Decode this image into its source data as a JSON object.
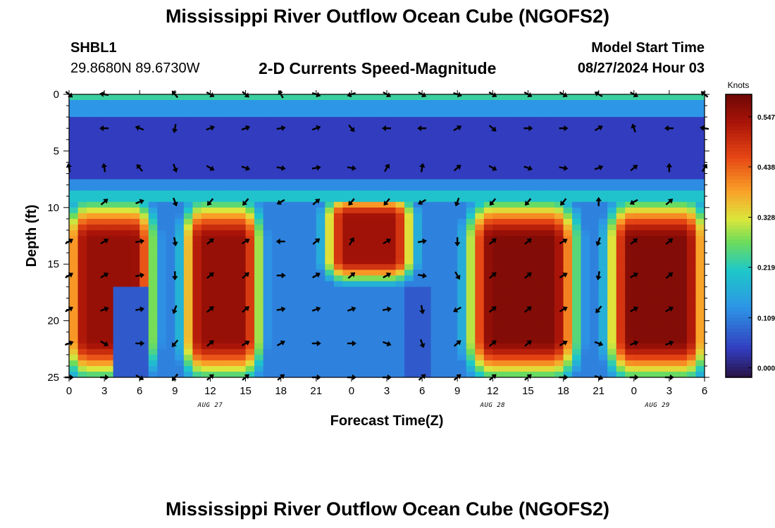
{
  "header": {
    "title": "Mississippi River Outflow Ocean Cube (NGOFS2)",
    "station_id": "SHBL1",
    "station_coords": "29.8680N  89.6730W",
    "subtitle": "2-D Currents Speed-Magnitude",
    "start_label": "Model Start Time",
    "start_value": "08/27/2024 Hour 03"
  },
  "footer": {
    "title": "Mississippi River Outflow Ocean Cube (NGOFS2)"
  },
  "chart_data": {
    "type": "heatmap",
    "title": "2-D Currents Speed-Magnitude",
    "xlabel": "Forecast Time(Z)",
    "ylabel": "Depth (ft)",
    "x_unit": "hours from 00Z Aug 27",
    "xlim": [
      0,
      54
    ],
    "ylim": [
      0,
      25
    ],
    "y_inverted": true,
    "x_tick_labels": [
      "0",
      "3",
      "6",
      "9",
      "12",
      "15",
      "18",
      "21",
      "0",
      "3",
      "6",
      "9",
      "12",
      "15",
      "18",
      "21",
      "0",
      "3",
      "6"
    ],
    "y_tick_labels": [
      "0",
      "5",
      "10",
      "15",
      "20",
      "25"
    ],
    "date_labels": [
      {
        "text": "AUG 27",
        "hour": 12
      },
      {
        "text": "AUG 28",
        "hour": 36
      },
      {
        "text": "AUG 29",
        "hour": 50
      }
    ],
    "colorbar": {
      "label": "Knots",
      "min": 0.0,
      "max": 0.6,
      "ticks": [
        "0.000",
        "0.109",
        "0.219",
        "0.328",
        "0.438",
        "0.547"
      ],
      "tick_values": [
        0.0,
        0.109,
        0.219,
        0.328,
        0.438,
        0.547
      ]
    },
    "layers": [
      {
        "depth_range": [
          0,
          0.5
        ],
        "speed": 0.25
      },
      {
        "depth_range": [
          0.5,
          2
        ],
        "speed": 0.15
      },
      {
        "depth_range": [
          2,
          7.5
        ],
        "speed": 0.06
      },
      {
        "depth_range": [
          7.5,
          8.5
        ],
        "speed": 0.14
      },
      {
        "depth_range": [
          8.5,
          9.5
        ],
        "speed": 0.22
      }
    ],
    "high_speed_regions": [
      {
        "hours": [
          0,
          7
        ],
        "depths": [
          9.5,
          25
        ],
        "peak": 0.56
      },
      {
        "hours": [
          10,
          16
        ],
        "depths": [
          9.5,
          25
        ],
        "peak": 0.56
      },
      {
        "hours": [
          22,
          29
        ],
        "depths": [
          9.5,
          16
        ],
        "peak": 0.55
      },
      {
        "hours": [
          34,
          43
        ],
        "depths": [
          9.5,
          25
        ],
        "peak": 0.58
      },
      {
        "hours": [
          46,
          54
        ],
        "depths": [
          9.5,
          25
        ],
        "peak": 0.58
      }
    ],
    "low_speed_regions": [
      {
        "hours": [
          4,
          7
        ],
        "depths": [
          17,
          25
        ],
        "value": 0.09
      },
      {
        "hours": [
          28.5,
          30.5
        ],
        "depths": [
          17,
          25
        ],
        "value": 0.09
      }
    ],
    "arrows": [
      {
        "hour": 0,
        "depth": 0,
        "dir": -40
      },
      {
        "hour": 3,
        "depth": 0,
        "dir": 170
      },
      {
        "hour": 9,
        "depth": 0,
        "dir": 130
      },
      {
        "hour": 12,
        "depth": 0,
        "dir": -30
      },
      {
        "hour": 15,
        "depth": 0,
        "dir": -40
      },
      {
        "hour": 18,
        "depth": 0,
        "dir": 120
      },
      {
        "hour": 21,
        "depth": 0,
        "dir": -20
      },
      {
        "hour": 24,
        "depth": 0,
        "dir": 200
      },
      {
        "hour": 27,
        "depth": 0,
        "dir": -30
      },
      {
        "hour": 30,
        "depth": 0,
        "dir": -30
      },
      {
        "hour": 33,
        "depth": 0,
        "dir": -20
      },
      {
        "hour": 36,
        "depth": 0,
        "dir": -30
      },
      {
        "hour": 39,
        "depth": 0,
        "dir": -30
      },
      {
        "hour": 42,
        "depth": 0,
        "dir": -30
      },
      {
        "hour": 45,
        "depth": 0,
        "dir": 150
      },
      {
        "hour": 48,
        "depth": 0,
        "dir": -30
      },
      {
        "hour": 54,
        "depth": 0,
        "dir": 140
      },
      {
        "hour": 3,
        "depth": 3,
        "dir": 180
      },
      {
        "hour": 6,
        "depth": 3,
        "dir": 160
      },
      {
        "hour": 9,
        "depth": 3,
        "dir": -100
      },
      {
        "hour": 12,
        "depth": 3,
        "dir": 20
      },
      {
        "hour": 15,
        "depth": 3,
        "dir": 20
      },
      {
        "hour": 18,
        "depth": 3,
        "dir": 10
      },
      {
        "hour": 21,
        "depth": 3,
        "dir": 20
      },
      {
        "hour": 24,
        "depth": 3,
        "dir": -50
      },
      {
        "hour": 27,
        "depth": 3,
        "dir": 180
      },
      {
        "hour": 30,
        "depth": 3,
        "dir": 180
      },
      {
        "hour": 33,
        "depth": 3,
        "dir": 30
      },
      {
        "hour": 36,
        "depth": 3,
        "dir": -40
      },
      {
        "hour": 39,
        "depth": 3,
        "dir": 0
      },
      {
        "hour": 42,
        "depth": 3,
        "dir": 0
      },
      {
        "hour": 45,
        "depth": 3,
        "dir": 30
      },
      {
        "hour": 48,
        "depth": 3,
        "dir": 110
      },
      {
        "hour": 51,
        "depth": 3,
        "dir": 180
      },
      {
        "hour": 54,
        "depth": 3,
        "dir": 170
      },
      {
        "hour": 0,
        "depth": 6.5,
        "dir": 100
      },
      {
        "hour": 3,
        "depth": 6.5,
        "dir": 100
      },
      {
        "hour": 6,
        "depth": 6.5,
        "dir": 130
      },
      {
        "hour": 9,
        "depth": 6.5,
        "dir": -70
      },
      {
        "hour": 12,
        "depth": 6.5,
        "dir": -30
      },
      {
        "hour": 15,
        "depth": 6.5,
        "dir": -20
      },
      {
        "hour": 18,
        "depth": 6.5,
        "dir": -10
      },
      {
        "hour": 21,
        "depth": 6.5,
        "dir": 10
      },
      {
        "hour": 24,
        "depth": 6.5,
        "dir": -10
      },
      {
        "hour": 27,
        "depth": 6.5,
        "dir": 60
      },
      {
        "hour": 30,
        "depth": 6.5,
        "dir": 80
      },
      {
        "hour": 33,
        "depth": 6.5,
        "dir": 40
      },
      {
        "hour": 36,
        "depth": 6.5,
        "dir": -30
      },
      {
        "hour": 39,
        "depth": 6.5,
        "dir": -20
      },
      {
        "hour": 42,
        "depth": 6.5,
        "dir": -10
      },
      {
        "hour": 45,
        "depth": 6.5,
        "dir": 20
      },
      {
        "hour": 48,
        "depth": 6.5,
        "dir": 40
      },
      {
        "hour": 51,
        "depth": 6.5,
        "dir": 90
      },
      {
        "hour": 54,
        "depth": 6.5,
        "dir": 60
      },
      {
        "hour": 3,
        "depth": 9.5,
        "dir": 40
      },
      {
        "hour": 6,
        "depth": 9.5,
        "dir": 20
      },
      {
        "hour": 9,
        "depth": 9.5,
        "dir": -70
      },
      {
        "hour": 12,
        "depth": 9.5,
        "dir": -130
      },
      {
        "hour": 15,
        "depth": 9.5,
        "dir": -130
      },
      {
        "hour": 18,
        "depth": 9.5,
        "dir": -150
      },
      {
        "hour": 21,
        "depth": 9.5,
        "dir": 40
      },
      {
        "hour": 24,
        "depth": 9.5,
        "dir": -130
      },
      {
        "hour": 27,
        "depth": 9.5,
        "dir": -130
      },
      {
        "hour": 30,
        "depth": 9.5,
        "dir": -150
      },
      {
        "hour": 33,
        "depth": 9.5,
        "dir": -110
      },
      {
        "hour": 36,
        "depth": 9.5,
        "dir": -130
      },
      {
        "hour": 39,
        "depth": 9.5,
        "dir": -130
      },
      {
        "hour": 42,
        "depth": 9.5,
        "dir": -130
      },
      {
        "hour": 45,
        "depth": 9.5,
        "dir": 90
      },
      {
        "hour": 48,
        "depth": 9.5,
        "dir": -150
      },
      {
        "hour": 51,
        "depth": 9.5,
        "dir": 40
      },
      {
        "hour": 0,
        "depth": 13,
        "dir": 30
      },
      {
        "hour": 3,
        "depth": 13,
        "dir": 30
      },
      {
        "hour": 6,
        "depth": 13,
        "dir": 10
      },
      {
        "hour": 9,
        "depth": 13,
        "dir": -80
      },
      {
        "hour": 12,
        "depth": 13,
        "dir": 40
      },
      {
        "hour": 15,
        "depth": 13,
        "dir": 30
      },
      {
        "hour": 18,
        "depth": 13,
        "dir": 180
      },
      {
        "hour": 21,
        "depth": 13,
        "dir": 40
      },
      {
        "hour": 24,
        "depth": 13,
        "dir": 60
      },
      {
        "hour": 27,
        "depth": 13,
        "dir": 30
      },
      {
        "hour": 30,
        "depth": 13,
        "dir": 10
      },
      {
        "hour": 33,
        "depth": 13,
        "dir": -90
      },
      {
        "hour": 36,
        "depth": 13,
        "dir": 40
      },
      {
        "hour": 39,
        "depth": 13,
        "dir": 40
      },
      {
        "hour": 42,
        "depth": 13,
        "dir": 30
      },
      {
        "hour": 45,
        "depth": 13,
        "dir": -110
      },
      {
        "hour": 48,
        "depth": 13,
        "dir": 40
      },
      {
        "hour": 51,
        "depth": 13,
        "dir": 40
      },
      {
        "hour": 0,
        "depth": 16,
        "dir": 30
      },
      {
        "hour": 3,
        "depth": 16,
        "dir": 30
      },
      {
        "hour": 6,
        "depth": 16,
        "dir": 10
      },
      {
        "hour": 9,
        "depth": 16,
        "dir": -90
      },
      {
        "hour": 12,
        "depth": 16,
        "dir": 40
      },
      {
        "hour": 15,
        "depth": 16,
        "dir": 40
      },
      {
        "hour": 18,
        "depth": 16,
        "dir": 0
      },
      {
        "hour": 21,
        "depth": 16,
        "dir": 30
      },
      {
        "hour": 24,
        "depth": 16,
        "dir": 40
      },
      {
        "hour": 27,
        "depth": 16,
        "dir": 30
      },
      {
        "hour": 30,
        "depth": 16,
        "dir": -10
      },
      {
        "hour": 33,
        "depth": 16,
        "dir": -60
      },
      {
        "hour": 36,
        "depth": 16,
        "dir": 40
      },
      {
        "hour": 39,
        "depth": 16,
        "dir": 40
      },
      {
        "hour": 42,
        "depth": 16,
        "dir": 30
      },
      {
        "hour": 45,
        "depth": 16,
        "dir": -100
      },
      {
        "hour": 48,
        "depth": 16,
        "dir": 30
      },
      {
        "hour": 51,
        "depth": 16,
        "dir": 40
      },
      {
        "hour": 0,
        "depth": 19,
        "dir": 30
      },
      {
        "hour": 3,
        "depth": 19,
        "dir": 20
      },
      {
        "hour": 6,
        "depth": 19,
        "dir": 10
      },
      {
        "hour": 9,
        "depth": 19,
        "dir": -110
      },
      {
        "hour": 12,
        "depth": 19,
        "dir": 40
      },
      {
        "hour": 15,
        "depth": 19,
        "dir": 40
      },
      {
        "hour": 18,
        "depth": 19,
        "dir": 10
      },
      {
        "hour": 21,
        "depth": 19,
        "dir": 20
      },
      {
        "hour": 24,
        "depth": 19,
        "dir": 20
      },
      {
        "hour": 27,
        "depth": 19,
        "dir": 10
      },
      {
        "hour": 30,
        "depth": 19,
        "dir": -80
      },
      {
        "hour": 33,
        "depth": 19,
        "dir": -150
      },
      {
        "hour": 36,
        "depth": 19,
        "dir": 40
      },
      {
        "hour": 39,
        "depth": 19,
        "dir": 40
      },
      {
        "hour": 42,
        "depth": 19,
        "dir": 30
      },
      {
        "hour": 45,
        "depth": 19,
        "dir": -130
      },
      {
        "hour": 48,
        "depth": 19,
        "dir": 30
      },
      {
        "hour": 51,
        "depth": 19,
        "dir": 30
      },
      {
        "hour": 0,
        "depth": 22,
        "dir": 20
      },
      {
        "hour": 3,
        "depth": 22,
        "dir": -30
      },
      {
        "hour": 6,
        "depth": 22,
        "dir": 0
      },
      {
        "hour": 9,
        "depth": 22,
        "dir": -130
      },
      {
        "hour": 12,
        "depth": 22,
        "dir": 40
      },
      {
        "hour": 15,
        "depth": 22,
        "dir": 30
      },
      {
        "hour": 18,
        "depth": 22,
        "dir": 30
      },
      {
        "hour": 21,
        "depth": 22,
        "dir": 0
      },
      {
        "hour": 24,
        "depth": 22,
        "dir": 0
      },
      {
        "hour": 27,
        "depth": 22,
        "dir": -20
      },
      {
        "hour": 30,
        "depth": 22,
        "dir": -70
      },
      {
        "hour": 33,
        "depth": 22,
        "dir": 40
      },
      {
        "hour": 36,
        "depth": 22,
        "dir": 40
      },
      {
        "hour": 39,
        "depth": 22,
        "dir": 40
      },
      {
        "hour": 42,
        "depth": 22,
        "dir": 30
      },
      {
        "hour": 45,
        "depth": 22,
        "dir": -20
      },
      {
        "hour": 48,
        "depth": 22,
        "dir": 20
      },
      {
        "hour": 51,
        "depth": 22,
        "dir": 20
      },
      {
        "hour": 0,
        "depth": 25,
        "dir": 0
      },
      {
        "hour": 3,
        "depth": 25,
        "dir": 0
      },
      {
        "hour": 6,
        "depth": 25,
        "dir": -30
      },
      {
        "hour": 9,
        "depth": 25,
        "dir": -130
      },
      {
        "hour": 12,
        "depth": 25,
        "dir": 40
      },
      {
        "hour": 15,
        "depth": 25,
        "dir": 40
      },
      {
        "hour": 18,
        "depth": 25,
        "dir": 40
      },
      {
        "hour": 21,
        "depth": 25,
        "dir": 0
      },
      {
        "hour": 24,
        "depth": 25,
        "dir": 0
      },
      {
        "hour": 27,
        "depth": 25,
        "dir": 0
      },
      {
        "hour": 30,
        "depth": 25,
        "dir": 40
      },
      {
        "hour": 33,
        "depth": 25,
        "dir": 40
      },
      {
        "hour": 36,
        "depth": 25,
        "dir": 40
      },
      {
        "hour": 39,
        "depth": 25,
        "dir": 40
      },
      {
        "hour": 42,
        "depth": 25,
        "dir": 0
      },
      {
        "hour": 45,
        "depth": 25,
        "dir": -20
      },
      {
        "hour": 48,
        "depth": 25,
        "dir": 0
      },
      {
        "hour": 51,
        "depth": 25,
        "dir": 0
      }
    ]
  }
}
